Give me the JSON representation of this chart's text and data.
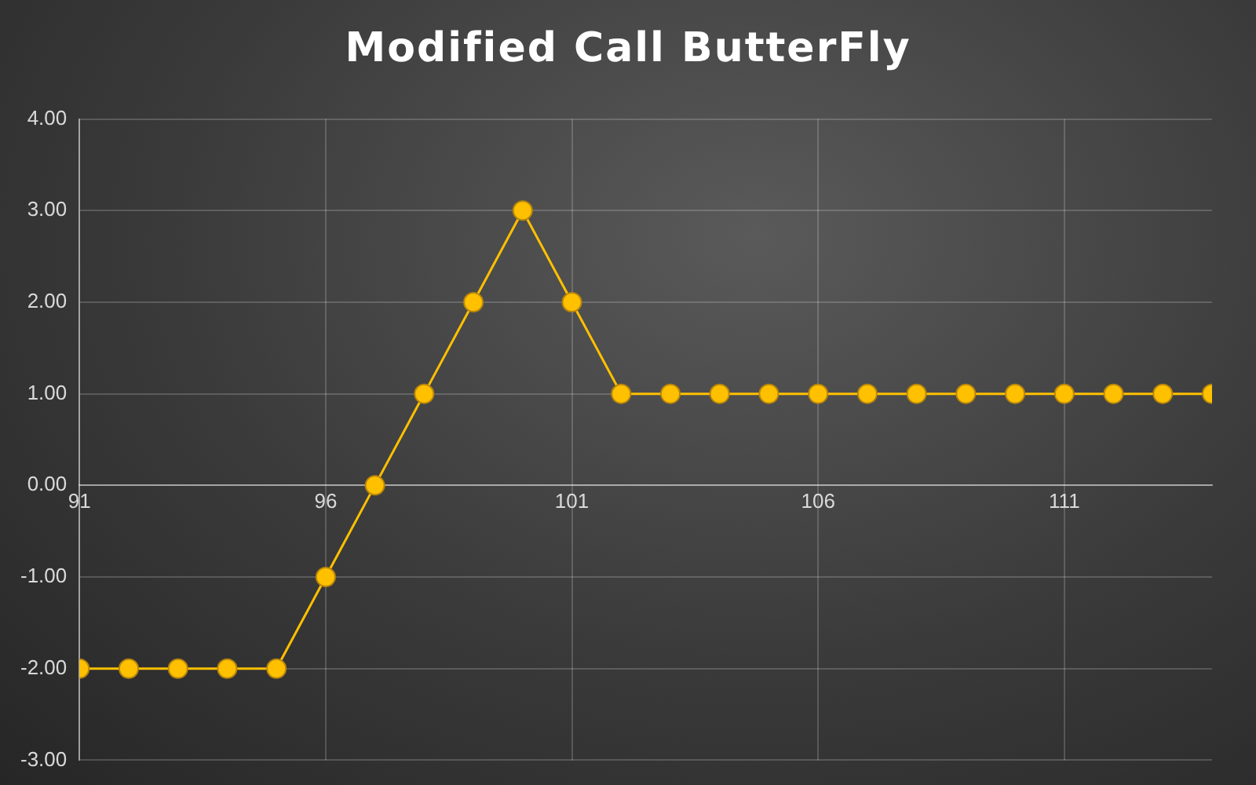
{
  "chart_data": {
    "type": "line",
    "title": "Modified Call ButterFly",
    "x": [
      91,
      92,
      93,
      94,
      95,
      96,
      97,
      98,
      99,
      100,
      101,
      102,
      103,
      104,
      105,
      106,
      107,
      108,
      109,
      110,
      111,
      112,
      113,
      114
    ],
    "series": [
      {
        "color": "#ffc000",
        "values": [
          -2,
          -2,
          -2,
          -2,
          -2,
          -1,
          0,
          1,
          2,
          3,
          2,
          1,
          1,
          1,
          1,
          1,
          1,
          1,
          1,
          1,
          1,
          1,
          1,
          1
        ]
      }
    ],
    "xlim": [
      91,
      114
    ],
    "xticks": [
      91,
      96,
      101,
      106,
      111
    ],
    "ylim": [
      -3,
      4
    ],
    "yticks": [
      {
        "value": -3,
        "label": "-3.00"
      },
      {
        "value": -2,
        "label": "-2.00"
      },
      {
        "value": -1,
        "label": "-1.00"
      },
      {
        "value": 0,
        "label": "0.00"
      },
      {
        "value": 1,
        "label": "1.00"
      },
      {
        "value": 2,
        "label": "2.00"
      },
      {
        "value": 3,
        "label": "3.00"
      },
      {
        "value": 4,
        "label": "4.00"
      }
    ],
    "grid": true,
    "marker": "circle",
    "line_style": "solid"
  }
}
